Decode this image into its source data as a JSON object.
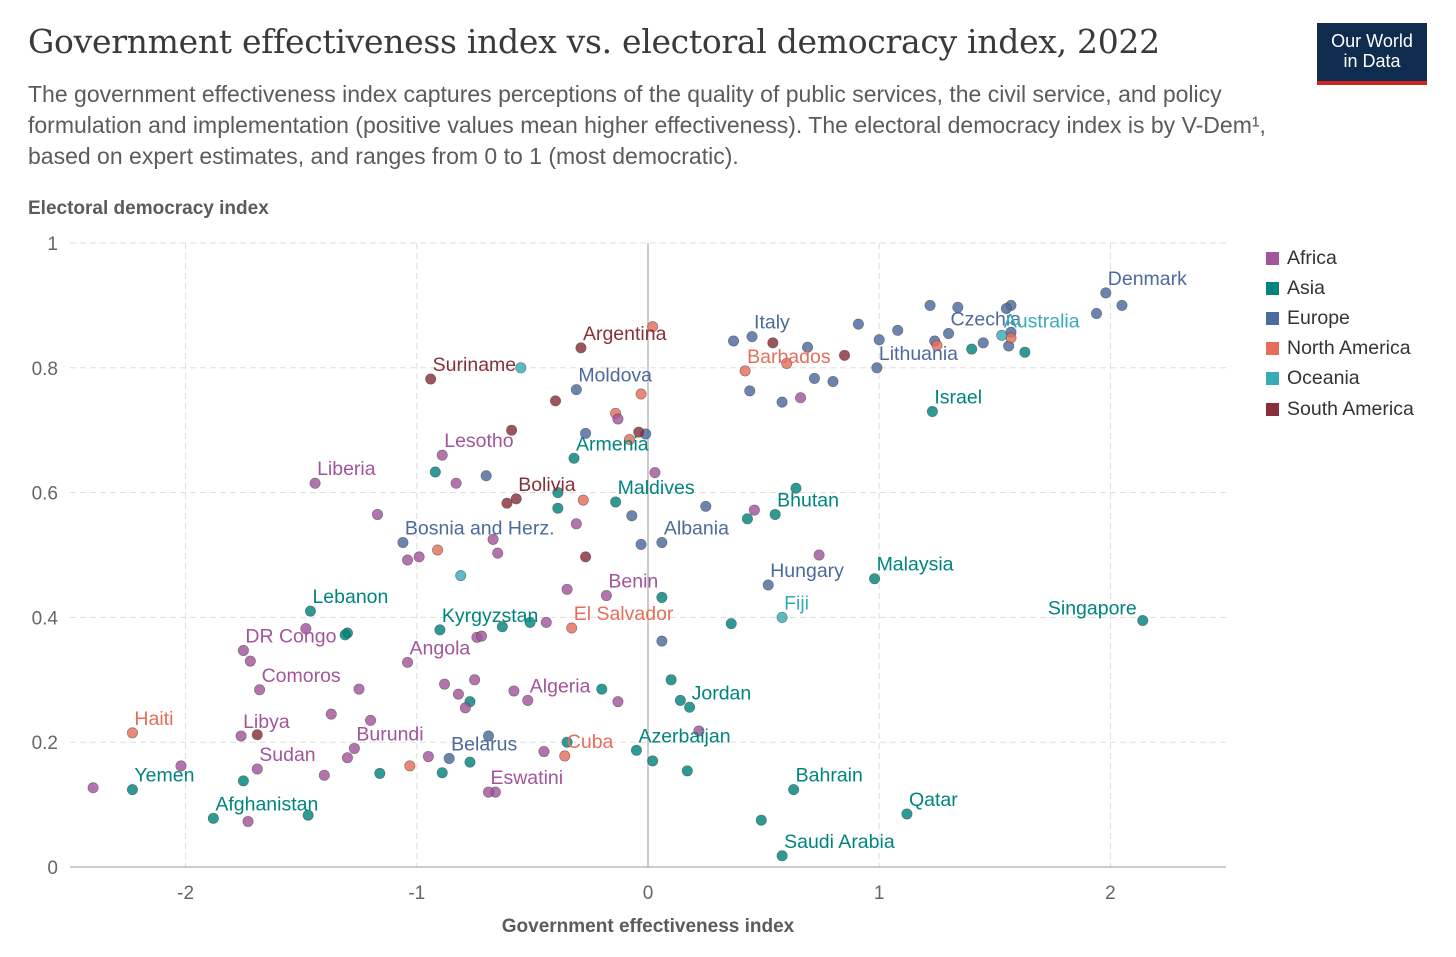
{
  "title": "Government effectiveness index vs. electoral democracy index, 2022",
  "subtitle": "The government effectiveness index captures perceptions of the quality of public services, the civil service, and policy formulation and implementation (positive values mean higher effectiveness). The electoral democracy index is by V-Dem¹, based on expert estimates, and ranges from 0 to 1 (most democratic).",
  "logo": {
    "line1": "Our World",
    "line2": "in Data"
  },
  "colors": {
    "Africa": "#a2559c",
    "Asia": "#00847e",
    "Europe": "#4c6a9c",
    "North America": "#e56e5a",
    "Oceania": "#38aaba",
    "South America": "#883039"
  },
  "chart_data": {
    "type": "scatter",
    "title": "Government effectiveness index vs. electoral democracy index, 2022",
    "xlabel": "Government effectiveness index",
    "ylabel": "Electoral democracy index",
    "xlim": [
      -2.5,
      2.5
    ],
    "ylim": [
      0,
      1
    ],
    "xticks": [
      -2,
      -1,
      0,
      1,
      2
    ],
    "yticks": [
      0,
      0.2,
      0.4,
      0.6,
      0.8,
      1
    ],
    "xtick_labels": [
      "-2",
      "-1",
      "0",
      "1",
      "2"
    ],
    "ytick_labels": [
      "0",
      "0.2",
      "0.4",
      "0.6",
      "0.8",
      "1"
    ],
    "grid": true,
    "legend_position": "right",
    "legend": [
      "Africa",
      "Asia",
      "Europe",
      "North America",
      "Oceania",
      "South America"
    ],
    "labeled_points": [
      {
        "label": "Denmark",
        "x": 1.98,
        "y": 0.92,
        "region": "Europe"
      },
      {
        "label": "Czechia",
        "x": 1.3,
        "y": 0.855,
        "region": "Europe"
      },
      {
        "label": "Australia",
        "x": 1.53,
        "y": 0.852,
        "region": "Oceania"
      },
      {
        "label": "Italy",
        "x": 0.45,
        "y": 0.85,
        "region": "Europe"
      },
      {
        "label": "Lithuania",
        "x": 0.99,
        "y": 0.8,
        "region": "Europe"
      },
      {
        "label": "Barbados",
        "x": 0.42,
        "y": 0.795,
        "region": "North America"
      },
      {
        "label": "Argentina",
        "x": -0.29,
        "y": 0.832,
        "region": "South America"
      },
      {
        "label": "Suriname",
        "x": -0.94,
        "y": 0.782,
        "region": "South America"
      },
      {
        "label": "Moldova",
        "x": -0.31,
        "y": 0.765,
        "region": "Europe"
      },
      {
        "label": "Israel",
        "x": 1.23,
        "y": 0.73,
        "region": "Asia"
      },
      {
        "label": "Lesotho",
        "x": -0.89,
        "y": 0.66,
        "region": "Africa"
      },
      {
        "label": "Armenia",
        "x": -0.32,
        "y": 0.655,
        "region": "Asia"
      },
      {
        "label": "Liberia",
        "x": -1.44,
        "y": 0.615,
        "region": "Africa"
      },
      {
        "label": "Bolivia",
        "x": -0.57,
        "y": 0.59,
        "region": "South America"
      },
      {
        "label": "Maldives",
        "x": -0.14,
        "y": 0.585,
        "region": "Asia"
      },
      {
        "label": "Bhutan",
        "x": 0.55,
        "y": 0.565,
        "region": "Asia"
      },
      {
        "label": "Bosnia and Herz.",
        "x": -1.06,
        "y": 0.52,
        "region": "Europe"
      },
      {
        "label": "Albania",
        "x": 0.06,
        "y": 0.52,
        "region": "Europe"
      },
      {
        "label": "Malaysia",
        "x": 0.98,
        "y": 0.462,
        "region": "Asia"
      },
      {
        "label": "Hungary",
        "x": 0.52,
        "y": 0.452,
        "region": "Europe"
      },
      {
        "label": "Benin",
        "x": -0.18,
        "y": 0.435,
        "region": "Africa"
      },
      {
        "label": "Singapore",
        "x": 2.14,
        "y": 0.395,
        "region": "Asia"
      },
      {
        "label": "Fiji",
        "x": 0.58,
        "y": 0.4,
        "region": "Oceania"
      },
      {
        "label": "Lebanon",
        "x": -1.46,
        "y": 0.41,
        "region": "Asia"
      },
      {
        "label": "Kyrgyzstan",
        "x": -0.9,
        "y": 0.38,
        "region": "Asia"
      },
      {
        "label": "El Salvador",
        "x": -0.33,
        "y": 0.383,
        "region": "North America"
      },
      {
        "label": "DR Congo",
        "x": -1.75,
        "y": 0.347,
        "region": "Africa"
      },
      {
        "label": "Angola",
        "x": -1.04,
        "y": 0.328,
        "region": "Africa"
      },
      {
        "label": "Comoros",
        "x": -1.68,
        "y": 0.284,
        "region": "Africa"
      },
      {
        "label": "Algeria",
        "x": -0.52,
        "y": 0.267,
        "region": "Africa"
      },
      {
        "label": "Jordan",
        "x": 0.18,
        "y": 0.256,
        "region": "Asia"
      },
      {
        "label": "Haiti",
        "x": -2.23,
        "y": 0.215,
        "region": "North America"
      },
      {
        "label": "Libya",
        "x": -1.76,
        "y": 0.21,
        "region": "Africa"
      },
      {
        "label": "Burundi",
        "x": -1.27,
        "y": 0.19,
        "region": "Africa"
      },
      {
        "label": "Cuba",
        "x": -0.36,
        "y": 0.178,
        "region": "North America"
      },
      {
        "label": "Azerbaijan",
        "x": -0.05,
        "y": 0.187,
        "region": "Asia"
      },
      {
        "label": "Belarus",
        "x": -0.86,
        "y": 0.174,
        "region": "Europe"
      },
      {
        "label": "Sudan",
        "x": -1.69,
        "y": 0.157,
        "region": "Africa"
      },
      {
        "label": "Eswatini",
        "x": -0.69,
        "y": 0.12,
        "region": "Africa"
      },
      {
        "label": "Yemen",
        "x": -2.23,
        "y": 0.124,
        "region": "Asia"
      },
      {
        "label": "Bahrain",
        "x": 0.63,
        "y": 0.124,
        "region": "Asia"
      },
      {
        "label": "Qatar",
        "x": 1.12,
        "y": 0.085,
        "region": "Asia"
      },
      {
        "label": "Afghanistan",
        "x": -1.88,
        "y": 0.078,
        "region": "Asia"
      },
      {
        "label": "Saudi Arabia",
        "x": 0.58,
        "y": 0.018,
        "region": "Asia"
      }
    ],
    "points": [
      {
        "x": 2.05,
        "y": 0.9,
        "region": "Europe"
      },
      {
        "x": 1.94,
        "y": 0.887,
        "region": "Europe"
      },
      {
        "x": 1.57,
        "y": 0.9,
        "region": "Europe"
      },
      {
        "x": 1.55,
        "y": 0.895,
        "region": "Europe"
      },
      {
        "x": 1.34,
        "y": 0.897,
        "region": "Europe"
      },
      {
        "x": 1.22,
        "y": 0.9,
        "region": "Europe"
      },
      {
        "x": 1.57,
        "y": 0.857,
        "region": "Europe"
      },
      {
        "x": 1.56,
        "y": 0.835,
        "region": "Europe"
      },
      {
        "x": 1.45,
        "y": 0.84,
        "region": "Europe"
      },
      {
        "x": 1.24,
        "y": 0.843,
        "region": "Europe"
      },
      {
        "x": 1.08,
        "y": 0.86,
        "region": "Europe"
      },
      {
        "x": 0.91,
        "y": 0.87,
        "region": "Europe"
      },
      {
        "x": 1.0,
        "y": 0.845,
        "region": "Europe"
      },
      {
        "x": 0.37,
        "y": 0.843,
        "region": "Europe"
      },
      {
        "x": 0.69,
        "y": 0.833,
        "region": "Europe"
      },
      {
        "x": 0.72,
        "y": 0.783,
        "region": "Europe"
      },
      {
        "x": 0.8,
        "y": 0.778,
        "region": "Europe"
      },
      {
        "x": 0.44,
        "y": 0.763,
        "region": "Europe"
      },
      {
        "x": 0.58,
        "y": 0.745,
        "region": "Europe"
      },
      {
        "x": -0.27,
        "y": 0.695,
        "region": "Europe"
      },
      {
        "x": -0.07,
        "y": 0.563,
        "region": "Europe"
      },
      {
        "x": 0.25,
        "y": 0.578,
        "region": "Europe"
      },
      {
        "x": -0.03,
        "y": 0.517,
        "region": "Europe"
      },
      {
        "x": -0.7,
        "y": 0.627,
        "region": "Europe"
      },
      {
        "x": 0.06,
        "y": 0.362,
        "region": "Europe"
      },
      {
        "x": -0.69,
        "y": 0.21,
        "region": "Europe"
      },
      {
        "x": -0.01,
        "y": 0.694,
        "region": "Europe"
      },
      {
        "x": 1.63,
        "y": 0.825,
        "region": "Asia"
      },
      {
        "x": 1.4,
        "y": 0.83,
        "region": "Asia"
      },
      {
        "x": 0.64,
        "y": 0.607,
        "region": "Asia"
      },
      {
        "x": 0.43,
        "y": 0.558,
        "region": "Asia"
      },
      {
        "x": -0.39,
        "y": 0.575,
        "region": "Asia"
      },
      {
        "x": -0.39,
        "y": 0.6,
        "region": "Asia"
      },
      {
        "x": -0.92,
        "y": 0.633,
        "region": "Asia"
      },
      {
        "x": 0.06,
        "y": 0.432,
        "region": "Asia"
      },
      {
        "x": 0.36,
        "y": 0.39,
        "region": "Asia"
      },
      {
        "x": -1.3,
        "y": 0.375,
        "region": "Asia"
      },
      {
        "x": -0.63,
        "y": 0.385,
        "region": "Asia"
      },
      {
        "x": -0.51,
        "y": 0.392,
        "region": "Asia"
      },
      {
        "x": 0.1,
        "y": 0.3,
        "region": "Asia"
      },
      {
        "x": 0.14,
        "y": 0.267,
        "region": "Asia"
      },
      {
        "x": -0.2,
        "y": 0.285,
        "region": "Asia"
      },
      {
        "x": -0.77,
        "y": 0.265,
        "region": "Asia"
      },
      {
        "x": 0.02,
        "y": 0.17,
        "region": "Asia"
      },
      {
        "x": 0.17,
        "y": 0.154,
        "region": "Asia"
      },
      {
        "x": -0.35,
        "y": 0.2,
        "region": "Asia"
      },
      {
        "x": -0.77,
        "y": 0.168,
        "region": "Asia"
      },
      {
        "x": -0.89,
        "y": 0.151,
        "region": "Asia"
      },
      {
        "x": -1.16,
        "y": 0.15,
        "region": "Asia"
      },
      {
        "x": -1.75,
        "y": 0.138,
        "region": "Asia"
      },
      {
        "x": -1.47,
        "y": 0.083,
        "region": "Asia"
      },
      {
        "x": 0.49,
        "y": 0.075,
        "region": "Asia"
      },
      {
        "x": -1.31,
        "y": 0.372,
        "region": "Asia"
      },
      {
        "x": 0.02,
        "y": 0.866,
        "region": "North America"
      },
      {
        "x": 0.6,
        "y": 0.807,
        "region": "North America"
      },
      {
        "x": 1.57,
        "y": 0.848,
        "region": "North America"
      },
      {
        "x": 1.25,
        "y": 0.836,
        "region": "North America"
      },
      {
        "x": -0.03,
        "y": 0.758,
        "region": "North America"
      },
      {
        "x": -0.14,
        "y": 0.727,
        "region": "North America"
      },
      {
        "x": -0.08,
        "y": 0.685,
        "region": "North America"
      },
      {
        "x": -0.28,
        "y": 0.588,
        "region": "North America"
      },
      {
        "x": -0.91,
        "y": 0.508,
        "region": "North America"
      },
      {
        "x": -1.03,
        "y": 0.162,
        "region": "North America"
      },
      {
        "x": -0.55,
        "y": 0.8,
        "region": "Oceania"
      },
      {
        "x": -0.81,
        "y": 0.467,
        "region": "Oceania"
      },
      {
        "x": 0.85,
        "y": 0.82,
        "region": "South America"
      },
      {
        "x": 0.54,
        "y": 0.84,
        "region": "South America"
      },
      {
        "x": -0.04,
        "y": 0.697,
        "region": "South America"
      },
      {
        "x": -0.59,
        "y": 0.7,
        "region": "South America"
      },
      {
        "x": -0.4,
        "y": 0.747,
        "region": "South America"
      },
      {
        "x": -0.61,
        "y": 0.583,
        "region": "South America"
      },
      {
        "x": -0.27,
        "y": 0.497,
        "region": "South America"
      },
      {
        "x": -1.69,
        "y": 0.212,
        "region": "South America"
      },
      {
        "x": -2.4,
        "y": 0.127,
        "region": "Africa"
      },
      {
        "x": -2.02,
        "y": 0.162,
        "region": "Africa"
      },
      {
        "x": -1.73,
        "y": 0.073,
        "region": "Africa"
      },
      {
        "x": -1.72,
        "y": 0.33,
        "region": "Africa"
      },
      {
        "x": -1.48,
        "y": 0.382,
        "region": "Africa"
      },
      {
        "x": -1.4,
        "y": 0.147,
        "region": "Africa"
      },
      {
        "x": -1.37,
        "y": 0.245,
        "region": "Africa"
      },
      {
        "x": -1.3,
        "y": 0.175,
        "region": "Africa"
      },
      {
        "x": -1.25,
        "y": 0.285,
        "region": "Africa"
      },
      {
        "x": -1.2,
        "y": 0.235,
        "region": "Africa"
      },
      {
        "x": -1.17,
        "y": 0.565,
        "region": "Africa"
      },
      {
        "x": -1.04,
        "y": 0.492,
        "region": "Africa"
      },
      {
        "x": -0.99,
        "y": 0.497,
        "region": "Africa"
      },
      {
        "x": -0.95,
        "y": 0.177,
        "region": "Africa"
      },
      {
        "x": -0.88,
        "y": 0.293,
        "region": "Africa"
      },
      {
        "x": -0.83,
        "y": 0.615,
        "region": "Africa"
      },
      {
        "x": -0.82,
        "y": 0.277,
        "region": "Africa"
      },
      {
        "x": -0.79,
        "y": 0.255,
        "region": "Africa"
      },
      {
        "x": -0.75,
        "y": 0.3,
        "region": "Africa"
      },
      {
        "x": -0.74,
        "y": 0.368,
        "region": "Africa"
      },
      {
        "x": -0.72,
        "y": 0.37,
        "region": "Africa"
      },
      {
        "x": -0.67,
        "y": 0.525,
        "region": "Africa"
      },
      {
        "x": -0.65,
        "y": 0.503,
        "region": "Africa"
      },
      {
        "x": -0.58,
        "y": 0.282,
        "region": "Africa"
      },
      {
        "x": -0.44,
        "y": 0.392,
        "region": "Africa"
      },
      {
        "x": -0.45,
        "y": 0.185,
        "region": "Africa"
      },
      {
        "x": -0.35,
        "y": 0.445,
        "region": "Africa"
      },
      {
        "x": -0.31,
        "y": 0.55,
        "region": "Africa"
      },
      {
        "x": -0.13,
        "y": 0.718,
        "region": "Africa"
      },
      {
        "x": -0.13,
        "y": 0.265,
        "region": "Africa"
      },
      {
        "x": 0.03,
        "y": 0.632,
        "region": "Africa"
      },
      {
        "x": 0.22,
        "y": 0.218,
        "region": "Africa"
      },
      {
        "x": 0.46,
        "y": 0.572,
        "region": "Africa"
      },
      {
        "x": 0.66,
        "y": 0.752,
        "region": "Africa"
      },
      {
        "x": 0.74,
        "y": 0.5,
        "region": "Africa"
      },
      {
        "x": -0.66,
        "y": 0.12,
        "region": "Africa"
      }
    ]
  }
}
